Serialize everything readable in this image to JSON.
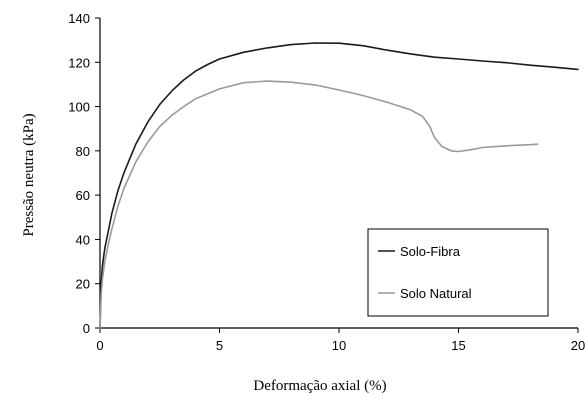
{
  "chart_data": {
    "type": "line",
    "title": "",
    "xlabel": "Deformação axial (%)",
    "ylabel": "Pressão neutra (kPa)",
    "xlim": [
      0,
      20
    ],
    "ylim": [
      0,
      140
    ],
    "x_ticks": [
      "0",
      "5",
      "10",
      "15",
      "20"
    ],
    "y_ticks": [
      "0",
      "20",
      "40",
      "60",
      "80",
      "100",
      "120",
      "140"
    ],
    "grid": false,
    "legend_position": "bottom-right",
    "series": [
      {
        "name": "Solo-Fibra",
        "color": "#1a1a1a",
        "points": [
          [
            0,
            0
          ],
          [
            0.05,
            20
          ],
          [
            0.1,
            28
          ],
          [
            0.2,
            36
          ],
          [
            0.35,
            44
          ],
          [
            0.5,
            52
          ],
          [
            0.75,
            62
          ],
          [
            1,
            70
          ],
          [
            1.5,
            83
          ],
          [
            2,
            93
          ],
          [
            2.5,
            101
          ],
          [
            3,
            107
          ],
          [
            3.5,
            112
          ],
          [
            4,
            116
          ],
          [
            4.5,
            119
          ],
          [
            5,
            121.5
          ],
          [
            6,
            124.5
          ],
          [
            7,
            126.5
          ],
          [
            8,
            128
          ],
          [
            9,
            128.7
          ],
          [
            10,
            128.6
          ],
          [
            11,
            127.5
          ],
          [
            12,
            125.5
          ],
          [
            13,
            123.8
          ],
          [
            14,
            122.3
          ],
          [
            15,
            121.5
          ],
          [
            16,
            120.6
          ],
          [
            17,
            119.8
          ],
          [
            18,
            118.7
          ],
          [
            19,
            117.8
          ],
          [
            20,
            116.8
          ]
        ]
      },
      {
        "name": "Solo Natural",
        "color": "#9a9a9a",
        "points": [
          [
            0,
            0
          ],
          [
            0.05,
            15
          ],
          [
            0.1,
            22
          ],
          [
            0.2,
            30
          ],
          [
            0.35,
            38
          ],
          [
            0.5,
            45
          ],
          [
            0.75,
            55
          ],
          [
            1,
            63
          ],
          [
            1.5,
            75
          ],
          [
            2,
            84
          ],
          [
            2.5,
            91
          ],
          [
            3,
            96
          ],
          [
            3.5,
            100
          ],
          [
            4,
            103.5
          ],
          [
            5,
            108
          ],
          [
            6,
            110.8
          ],
          [
            7,
            111.5
          ],
          [
            8,
            111
          ],
          [
            9,
            109.8
          ],
          [
            10,
            107.5
          ],
          [
            11,
            105
          ],
          [
            12,
            102
          ],
          [
            13,
            98.5
          ],
          [
            13.5,
            95.5
          ],
          [
            13.8,
            91
          ],
          [
            14,
            86
          ],
          [
            14.3,
            82
          ],
          [
            14.7,
            80
          ],
          [
            15,
            79.7
          ],
          [
            15.5,
            80.5
          ],
          [
            16,
            81.5
          ],
          [
            17,
            82.3
          ],
          [
            18,
            82.8
          ],
          [
            18.3,
            83
          ]
        ]
      }
    ]
  }
}
